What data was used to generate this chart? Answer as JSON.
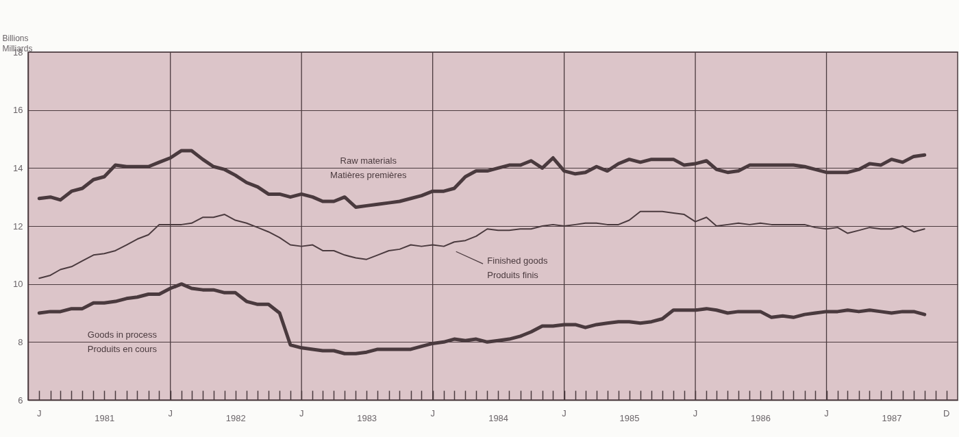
{
  "chart_data": {
    "type": "line",
    "ylabel": "Billions\nMilliards",
    "x": [
      "1981-01",
      "1981-02",
      "1981-03",
      "1981-04",
      "1981-05",
      "1981-06",
      "1981-07",
      "1981-08",
      "1981-09",
      "1981-10",
      "1981-11",
      "1981-12",
      "1982-01",
      "1982-02",
      "1982-03",
      "1982-04",
      "1982-05",
      "1982-06",
      "1982-07",
      "1982-08",
      "1982-09",
      "1982-10",
      "1982-11",
      "1982-12",
      "1983-01",
      "1983-02",
      "1983-03",
      "1983-04",
      "1983-05",
      "1983-06",
      "1983-07",
      "1983-08",
      "1983-09",
      "1983-10",
      "1983-11",
      "1983-12",
      "1984-01",
      "1984-02",
      "1984-03",
      "1984-04",
      "1984-05",
      "1984-06",
      "1984-07",
      "1984-08",
      "1984-09",
      "1984-10",
      "1984-11",
      "1984-12",
      "1985-01",
      "1985-02",
      "1985-03",
      "1985-04",
      "1985-05",
      "1985-06",
      "1985-07",
      "1985-08",
      "1985-09",
      "1985-10",
      "1985-11",
      "1985-12",
      "1986-01",
      "1986-02",
      "1986-03",
      "1986-04",
      "1986-05",
      "1986-06",
      "1986-07",
      "1986-08",
      "1986-09",
      "1986-10",
      "1986-11",
      "1986-12",
      "1987-01",
      "1987-02",
      "1987-03",
      "1987-04",
      "1987-05",
      "1987-06",
      "1987-07",
      "1987-08",
      "1987-09",
      "1987-10"
    ],
    "series": [
      {
        "name": "Raw materials\nMatières premières",
        "color": "#4a3a3e",
        "values": [
          12.95,
          13.0,
          12.9,
          13.2,
          13.3,
          13.6,
          13.7,
          14.1,
          14.05,
          14.05,
          14.05,
          14.2,
          14.35,
          14.6,
          14.6,
          14.3,
          14.05,
          13.95,
          13.75,
          13.5,
          13.35,
          13.1,
          13.1,
          13.0,
          13.1,
          13.0,
          12.85,
          12.85,
          13.0,
          12.65,
          12.7,
          12.75,
          12.8,
          12.85,
          12.95,
          13.05,
          13.2,
          13.2,
          13.3,
          13.7,
          13.9,
          13.9,
          14.0,
          14.1,
          14.1,
          14.25,
          14.0,
          14.35,
          13.9,
          13.8,
          13.85,
          14.05,
          13.9,
          14.15,
          14.3,
          14.2,
          14.3,
          14.3,
          14.3,
          14.1,
          14.15,
          14.25,
          13.95,
          13.85,
          13.9,
          14.1,
          14.1,
          14.1,
          14.1,
          14.1,
          14.05,
          13.95,
          13.85,
          13.85,
          13.85,
          13.95,
          14.15,
          14.1,
          14.3,
          14.2,
          14.4,
          14.45
        ]
      },
      {
        "name": "Finished goods\nProduits finis",
        "color": "#4a3a3e",
        "values": [
          10.2,
          10.3,
          10.5,
          10.6,
          10.8,
          11.0,
          11.05,
          11.15,
          11.35,
          11.55,
          11.7,
          12.05,
          12.05,
          12.05,
          12.1,
          12.3,
          12.3,
          12.4,
          12.2,
          12.1,
          11.95,
          11.8,
          11.6,
          11.35,
          11.3,
          11.35,
          11.15,
          11.15,
          11.0,
          10.9,
          10.85,
          11.0,
          11.15,
          11.2,
          11.35,
          11.3,
          11.35,
          11.3,
          11.45,
          11.5,
          11.65,
          11.9,
          11.85,
          11.85,
          11.9,
          11.9,
          12.0,
          12.05,
          12.0,
          12.05,
          12.1,
          12.1,
          12.05,
          12.05,
          12.2,
          12.5,
          12.5,
          12.5,
          12.45,
          12.4,
          12.15,
          12.3,
          12.0,
          12.05,
          12.1,
          12.05,
          12.1,
          12.05,
          12.05,
          12.05,
          12.05,
          11.95,
          11.9,
          11.95,
          11.75,
          11.85,
          11.95,
          11.9,
          11.9,
          12.0,
          11.8,
          11.9
        ]
      },
      {
        "name": "Goods in process\nProduits en cours",
        "color": "#4a3a3e",
        "values": [
          9.0,
          9.05,
          9.05,
          9.15,
          9.15,
          9.35,
          9.35,
          9.4,
          9.5,
          9.55,
          9.65,
          9.65,
          9.85,
          10.0,
          9.85,
          9.8,
          9.8,
          9.7,
          9.7,
          9.4,
          9.3,
          9.3,
          9.0,
          7.9,
          7.8,
          7.75,
          7.7,
          7.7,
          7.6,
          7.6,
          7.65,
          7.75,
          7.75,
          7.75,
          7.75,
          7.85,
          7.95,
          8.0,
          8.1,
          8.05,
          8.1,
          8.0,
          8.05,
          8.1,
          8.2,
          8.35,
          8.55,
          8.55,
          8.6,
          8.6,
          8.5,
          8.6,
          8.65,
          8.7,
          8.7,
          8.65,
          8.7,
          8.8,
          9.1,
          9.1,
          9.1,
          9.15,
          9.1,
          9.0,
          9.05,
          9.05,
          9.05,
          8.85,
          8.9,
          8.85,
          8.95,
          9.0,
          9.05,
          9.05,
          9.1,
          9.05,
          9.1,
          9.05,
          9.0,
          9.05,
          9.05,
          8.95
        ]
      }
    ],
    "xlim": [
      "1980-12",
      "1988-01"
    ],
    "xticks": [
      {
        "value": "1981-01",
        "label": null
      },
      {
        "value": "1981-02",
        "label": null
      },
      {
        "value": "1981-03",
        "label": null
      },
      {
        "value": "1981-04",
        "label": null
      },
      {
        "value": "1981-05",
        "label": null
      },
      {
        "value": "1981-06",
        "label": null
      },
      {
        "value": "1981-07",
        "label": "1981"
      },
      {
        "value": "1981-08",
        "label": null
      },
      {
        "value": "1981-09",
        "label": null
      },
      {
        "value": "1981-10",
        "label": null
      },
      {
        "value": "1981-11",
        "label": null
      },
      {
        "value": "1981-12",
        "label": null
      },
      {
        "value": "1982-01",
        "label": null
      },
      {
        "value": "1982-02",
        "label": null
      },
      {
        "value": "1982-03",
        "label": null
      },
      {
        "value": "1982-04",
        "label": null
      },
      {
        "value": "1982-05",
        "label": null
      },
      {
        "value": "1982-06",
        "label": null
      },
      {
        "value": "1982-07",
        "label": "1982"
      },
      {
        "value": "1982-08",
        "label": null
      },
      {
        "value": "1982-09",
        "label": null
      },
      {
        "value": "1982-10",
        "label": null
      },
      {
        "value": "1982-11",
        "label": null
      },
      {
        "value": "1982-12",
        "label": null
      },
      {
        "value": "1983-01",
        "label": null
      },
      {
        "value": "1983-02",
        "label": null
      },
      {
        "value": "1983-03",
        "label": null
      },
      {
        "value": "1983-04",
        "label": null
      },
      {
        "value": "1983-05",
        "label": null
      },
      {
        "value": "1983-06",
        "label": null
      },
      {
        "value": "1983-07",
        "label": "1983"
      },
      {
        "value": "1983-08",
        "label": null
      },
      {
        "value": "1983-09",
        "label": null
      },
      {
        "value": "1983-10",
        "label": null
      },
      {
        "value": "1983-11",
        "label": null
      },
      {
        "value": "1983-12",
        "label": null
      },
      {
        "value": "1984-01",
        "label": null
      },
      {
        "value": "1984-02",
        "label": null
      },
      {
        "value": "1984-03",
        "label": null
      },
      {
        "value": "1984-04",
        "label": null
      },
      {
        "value": "1984-05",
        "label": null
      },
      {
        "value": "1984-06",
        "label": null
      },
      {
        "value": "1984-07",
        "label": "1984"
      },
      {
        "value": "1984-08",
        "label": null
      },
      {
        "value": "1984-09",
        "label": null
      },
      {
        "value": "1984-10",
        "label": null
      },
      {
        "value": "1984-11",
        "label": null
      },
      {
        "value": "1984-12",
        "label": null
      },
      {
        "value": "1985-01",
        "label": null
      },
      {
        "value": "1985-02",
        "label": null
      },
      {
        "value": "1985-03",
        "label": null
      },
      {
        "value": "1985-04",
        "label": null
      },
      {
        "value": "1985-05",
        "label": null
      },
      {
        "value": "1985-06",
        "label": null
      },
      {
        "value": "1985-07",
        "label": "1985"
      },
      {
        "value": "1985-08",
        "label": null
      },
      {
        "value": "1985-09",
        "label": null
      },
      {
        "value": "1985-10",
        "label": null
      },
      {
        "value": "1985-11",
        "label": null
      },
      {
        "value": "1985-12",
        "label": null
      },
      {
        "value": "1986-01",
        "label": null
      },
      {
        "value": "1986-02",
        "label": null
      },
      {
        "value": "1986-03",
        "label": null
      },
      {
        "value": "1986-04",
        "label": null
      },
      {
        "value": "1986-05",
        "label": null
      },
      {
        "value": "1986-06",
        "label": null
      },
      {
        "value": "1986-07",
        "label": "1986"
      },
      {
        "value": "1986-08",
        "label": null
      },
      {
        "value": "1986-09",
        "label": null
      },
      {
        "value": "1986-10",
        "label": null
      },
      {
        "value": "1986-11",
        "label": null
      },
      {
        "value": "1986-12",
        "label": null
      },
      {
        "value": "1987-01",
        "label": null
      },
      {
        "value": "1987-02",
        "label": null
      },
      {
        "value": "1987-03",
        "label": null
      },
      {
        "value": "1987-04",
        "label": null
      },
      {
        "value": "1987-05",
        "label": null
      },
      {
        "value": "1987-06",
        "label": null
      },
      {
        "value": "1987-07",
        "label": "1987"
      },
      {
        "value": "1987-08",
        "label": null
      },
      {
        "value": "1987-09",
        "label": null
      },
      {
        "value": "1987-10",
        "label": null
      },
      {
        "value": "1987-11",
        "label": null
      },
      {
        "value": "1987-12",
        "label": null
      }
    ],
    "ylim": [
      6,
      18
    ],
    "yticks": [
      6,
      8,
      10,
      12,
      14,
      16,
      18
    ],
    "grid": "y",
    "ref_lines": [
      {
        "axis": "x",
        "value": "1982-01",
        "label": null
      },
      {
        "axis": "x",
        "value": "1983-01",
        "label": null
      },
      {
        "axis": "x",
        "value": "1984-01",
        "label": null
      },
      {
        "axis": "x",
        "value": "1985-01",
        "label": null
      },
      {
        "axis": "x",
        "value": "1986-01",
        "label": null
      },
      {
        "axis": "x",
        "value": "1987-01",
        "label": null
      }
    ],
    "annotations": [
      "J",
      "J",
      "J",
      "J",
      "J",
      "J",
      "J",
      "D"
    ],
    "marker": "none",
    "line_style": "solid"
  }
}
